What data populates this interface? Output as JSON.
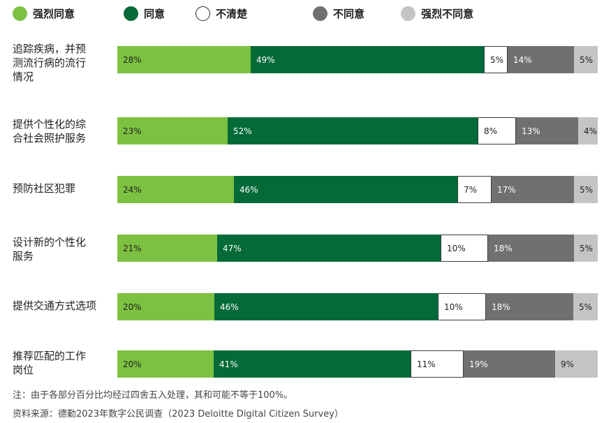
{
  "colors": {
    "strongly_agree": "#7dc142",
    "agree": "#046a38",
    "unsure": "#ffffff",
    "disagree": "#707070",
    "strongly_disagree": "#c4c4c4"
  },
  "chart_data": {
    "type": "bar",
    "orientation": "horizontal",
    "stacked": true,
    "legend_position": "top",
    "grid": false,
    "xlim": [
      0,
      100
    ],
    "unit": "%",
    "categories": [
      "追踪疾病，并预测流行病的流行情况",
      "提供个性化的综合社会照护服务",
      "预防社区犯罪",
      "设计新的个性化服务",
      "提供交通方式选项",
      "推荐匹配的工作岗位"
    ],
    "category_lines": [
      [
        "追踪疾病，并预",
        "测流行病的流行",
        "情况"
      ],
      [
        "提供个性化的综",
        "合社会照护服务"
      ],
      [
        "预防社区犯罪"
      ],
      [
        "设计新的个性化",
        "服务"
      ],
      [
        "提供交通方式选项"
      ],
      [
        "推荐匹配的工作",
        "岗位"
      ]
    ],
    "series": [
      {
        "name": "强烈同意",
        "color_key": "strongly_agree",
        "label_color": "#1f1f1f",
        "values": [
          28,
          23,
          24,
          21,
          20,
          20
        ]
      },
      {
        "name": "同意",
        "color_key": "agree",
        "label_color": "#ffffff",
        "values": [
          49,
          52,
          46,
          47,
          46,
          41
        ]
      },
      {
        "name": "不清楚",
        "color_key": "unsure",
        "label_color": "#1f1f1f",
        "values": [
          5,
          8,
          7,
          10,
          10,
          11
        ]
      },
      {
        "name": "不同意",
        "color_key": "disagree",
        "label_color": "#ffffff",
        "values": [
          14,
          13,
          17,
          18,
          18,
          19
        ]
      },
      {
        "name": "强烈不同意",
        "color_key": "strongly_disagree",
        "label_color": "#1f1f1f",
        "values": [
          5,
          4,
          5,
          5,
          5,
          9
        ]
      }
    ]
  },
  "footnote": "注：由于各部分百分比均经过四舍五入处理，其和可能不等于100%。",
  "source": "资料来源：德勤2023年数字公民调查（2023 Deloitte Digital Citizen Survey）"
}
